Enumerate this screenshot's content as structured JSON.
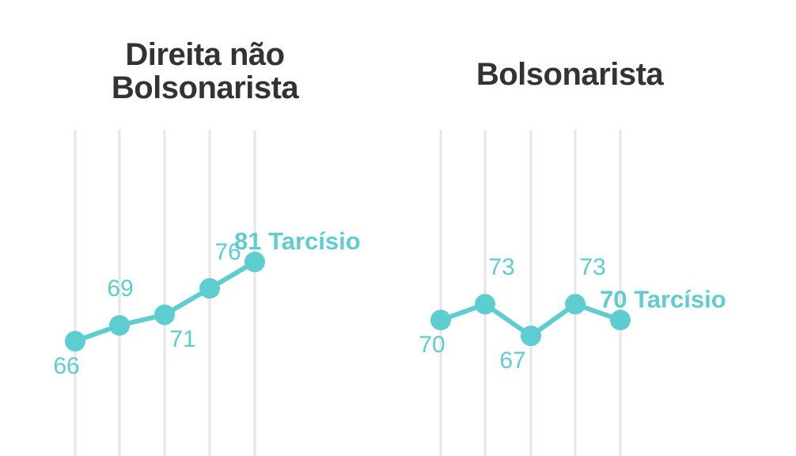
{
  "colors": {
    "series": "#5ecdd0",
    "grid": "#e6e6e6",
    "title": "#333333"
  },
  "chart_data": [
    {
      "type": "line",
      "title": "Direita não Bolsonarista",
      "title_lines": [
        "Direita não",
        "Bolsonarista"
      ],
      "series": [
        {
          "name": "Tarcísio",
          "values": [
            66,
            69,
            71,
            76,
            81
          ]
        }
      ],
      "point_labels": [
        "66",
        "69",
        "71",
        "76",
        "81"
      ],
      "end_label": "81 Tarcísio",
      "grid": true
    },
    {
      "type": "line",
      "title": "Bolsonarista",
      "title_lines": [
        "Bolsonarista"
      ],
      "series": [
        {
          "name": "Tarcísio",
          "values": [
            70,
            73,
            67,
            73,
            70
          ]
        }
      ],
      "point_labels": [
        "70",
        "73",
        "67",
        "73",
        "70"
      ],
      "end_label": "70 Tarcísio",
      "grid": true
    }
  ]
}
